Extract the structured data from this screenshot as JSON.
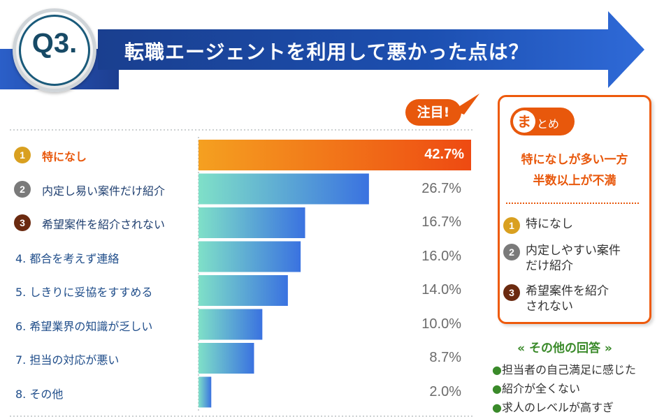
{
  "header": {
    "badge": "Q3.",
    "question": "転職エージェントを利用して悪かった点は？"
  },
  "attention_label": "注目!",
  "chart_data": {
    "type": "bar",
    "orientation": "horizontal",
    "categories": [
      "特になし",
      "内定し易い案件だけ紹介",
      "希望案件を紹介されない",
      "4. 都合を考えず連絡",
      "5. しきりに妥協をすすめる",
      "6. 希望業界の知識が乏しい",
      "7. 担当の対応が悪い",
      "8. その他"
    ],
    "values": [
      42.7,
      26.7,
      16.7,
      16.0,
      14.0,
      10.0,
      8.7,
      2.0
    ],
    "value_labels": [
      "42.7%",
      "26.7%",
      "16.7%",
      "16.0%",
      "14.0%",
      "10.0%",
      "8.7%",
      "2.0%"
    ],
    "rank_badges": [
      "1",
      "2",
      "3"
    ],
    "xlim": [
      0,
      42.7
    ],
    "title": "",
    "xlabel": "",
    "ylabel": "",
    "colors": {
      "top": "#f5a020",
      "top_end": "#ee4a12",
      "bar_start": "#7fe0c8",
      "bar_end": "#3a72e0",
      "rank1": "#d9a020",
      "rank2": "#7a7a7a",
      "rank3": "#6b2a10"
    }
  },
  "summary": {
    "badge_char": "ま",
    "badge_rest": "とめ",
    "headline_1": "特になしが多い一方",
    "headline_2": "半数以上が不満",
    "items": [
      {
        "rank": "1",
        "line1": "特になし",
        "line2": ""
      },
      {
        "rank": "2",
        "line1": "内定しやすい案件",
        "line2": "だけ紹介"
      },
      {
        "rank": "3",
        "line1": "希望案件を紹介",
        "line2": "されない"
      }
    ]
  },
  "others": {
    "title": "« その他の回答 »",
    "bullet": "●",
    "items": [
      "担当者の自己満足に感じた",
      "紹介が全くない",
      "求人のレベルが高すぎ"
    ]
  }
}
